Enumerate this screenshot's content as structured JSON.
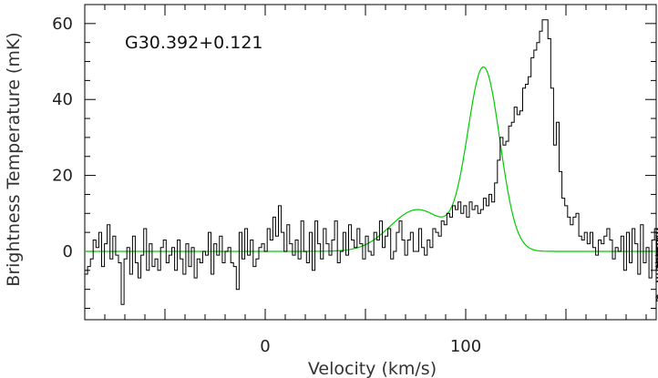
{
  "chart_data": {
    "type": "line",
    "title": "",
    "annotation": "G30.392+0.121",
    "xlabel": "Velocity (km/s)",
    "ylabel": "Brightness Temperature (mK)",
    "xlim": [
      -90,
      195
    ],
    "ylim": [
      -18,
      65
    ],
    "xticks": [
      0,
      100
    ],
    "yticks": [
      0,
      20,
      40,
      60
    ],
    "grid": false,
    "legend": "none",
    "colors": {
      "spectrum": "#000000",
      "fit": "#00cc00",
      "axes": "#000000"
    },
    "series": [
      {
        "style": "step",
        "bin_width": 1.4,
        "x_start": -90,
        "values": [
          -6,
          -4,
          -2,
          3,
          1,
          5,
          -4,
          2,
          7,
          -2,
          4,
          -1,
          -3,
          -14,
          -2,
          1,
          -6,
          4,
          -3,
          -7,
          -1,
          6,
          -5,
          2,
          -4,
          -2,
          -5,
          1,
          3,
          -3,
          -1,
          1,
          -5,
          3,
          -2,
          -6,
          2,
          -4,
          1,
          -7,
          -2,
          -3,
          0,
          -1,
          5,
          -6,
          2,
          -1,
          4,
          -3,
          0,
          1,
          -3,
          -4,
          -10,
          5,
          -2,
          6,
          -1,
          3,
          -4,
          -2,
          1,
          2,
          0,
          6,
          3,
          9,
          4,
          12,
          5,
          0,
          7,
          2,
          -1,
          3,
          -2,
          8,
          0,
          -3,
          5,
          -5,
          8,
          2,
          -2,
          6,
          2,
          -1,
          3,
          8,
          -3,
          0,
          5,
          -1,
          7,
          3,
          1,
          6,
          2,
          -2,
          4,
          0,
          -1,
          5,
          3,
          8,
          1,
          4,
          6,
          -2,
          0,
          5,
          8,
          3,
          -1,
          3,
          5,
          0,
          0,
          6,
          1,
          -1,
          3,
          1,
          6,
          5,
          4,
          8,
          7,
          10,
          9,
          12,
          11,
          13,
          10,
          12,
          9,
          13,
          11,
          12,
          10,
          11,
          14,
          12,
          15,
          13,
          18,
          24,
          30,
          28,
          29,
          33,
          34,
          38,
          36,
          37,
          43,
          44,
          46,
          51,
          53,
          55,
          58,
          61,
          61,
          56,
          43,
          28,
          34,
          21,
          14,
          12,
          9,
          7,
          9,
          10,
          4,
          3,
          5,
          2,
          5,
          1,
          -1,
          3,
          2,
          4,
          6,
          3,
          -2,
          1,
          0,
          4,
          -5,
          5,
          -3,
          6,
          2,
          -6,
          7,
          -3,
          1,
          -7,
          3,
          6,
          -2,
          -5,
          4,
          0,
          -1,
          2,
          -13,
          -2,
          -5,
          -3,
          -1,
          -4,
          -12,
          -1,
          5,
          -2,
          0,
          -7,
          -3,
          5,
          -4,
          3,
          -8,
          0,
          6,
          -6,
          -2,
          4,
          2,
          -5
        ]
      },
      {
        "style": "gaussian-fit",
        "components": [
          {
            "amplitude": 48,
            "center": 109,
            "fwhm": 19
          },
          {
            "amplitude": 11,
            "center": 76,
            "fwhm": 32
          }
        ]
      }
    ]
  }
}
